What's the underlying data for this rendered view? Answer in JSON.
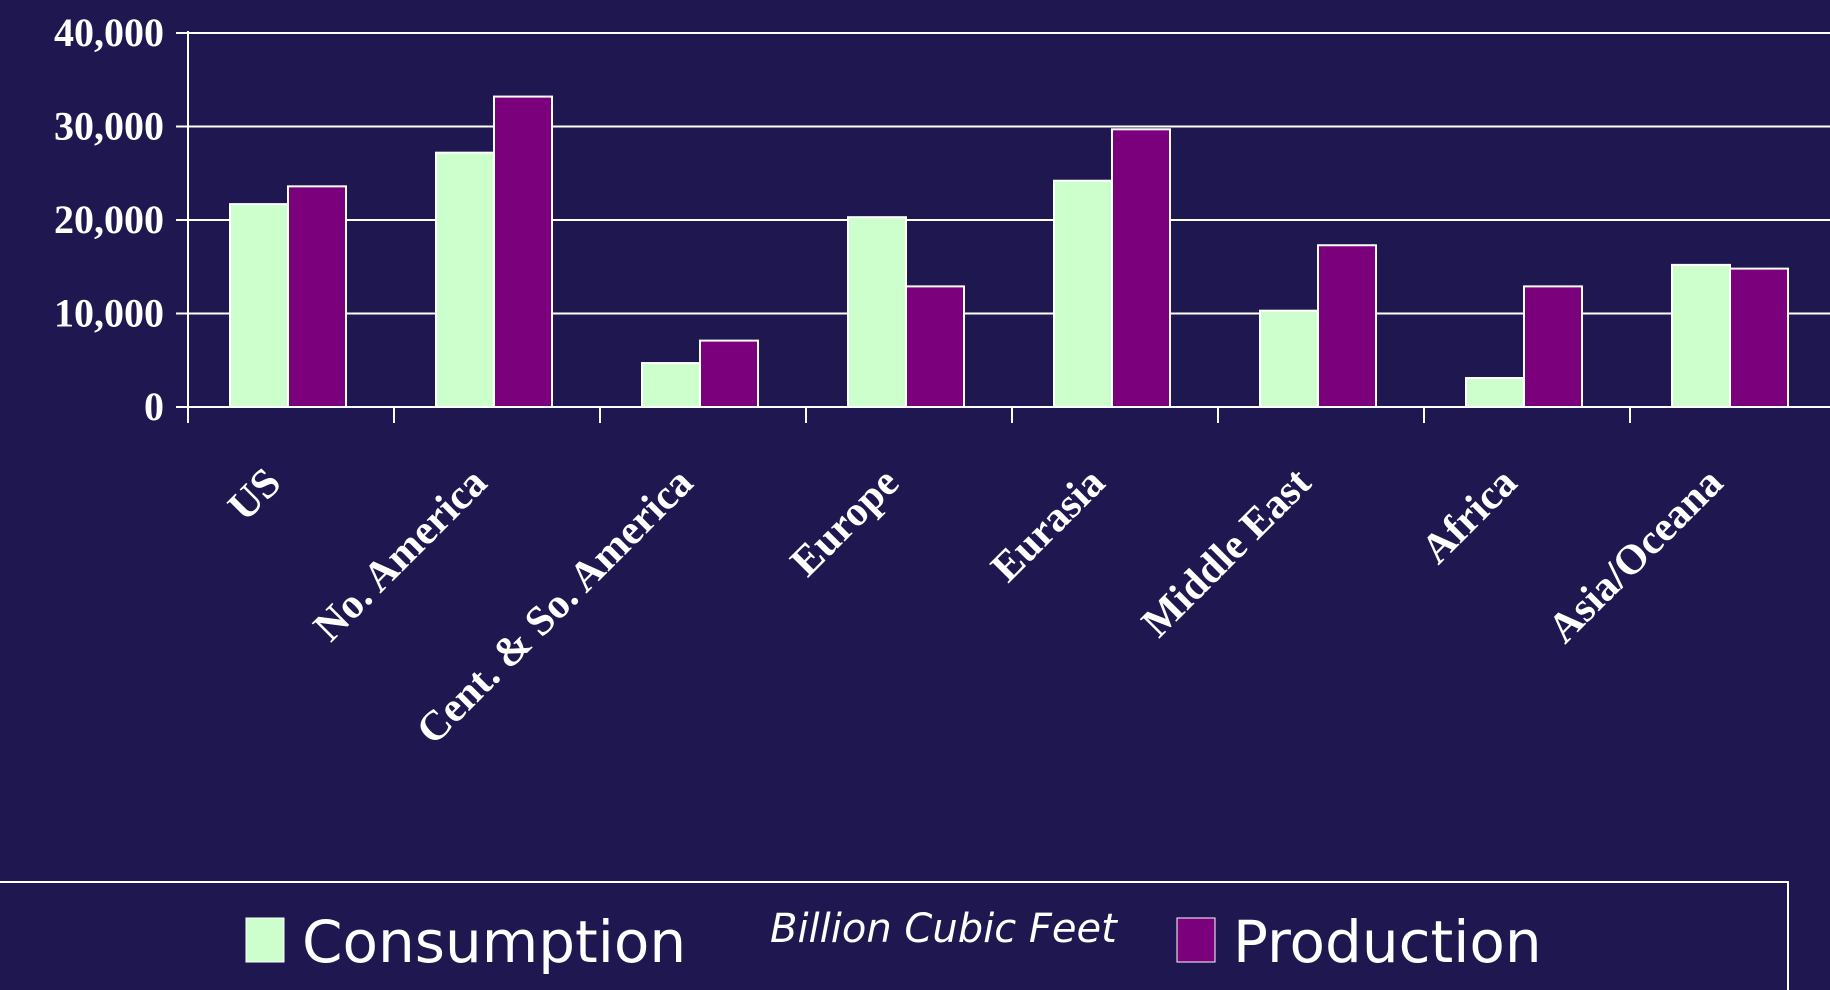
{
  "chart_data": {
    "type": "bar",
    "categories": [
      "US",
      "No. America",
      "Cent. & So. America",
      "Europe",
      "Eurasia",
      "Middle East",
      "Africa",
      "Asia/Oceana"
    ],
    "series": [
      {
        "name": "Consumption",
        "color": "#ccffcc",
        "values": [
          21700,
          27200,
          4700,
          20300,
          24200,
          10300,
          3100,
          15200
        ]
      },
      {
        "name": "Production",
        "color": "#7b007b",
        "values": [
          23600,
          33200,
          7100,
          12900,
          29700,
          17300,
          12900,
          14800
        ]
      }
    ],
    "ylim": [
      0,
      40000
    ],
    "yticks": [
      "0",
      "10,000",
      "20,000",
      "30,000",
      "40,000"
    ],
    "ytick_values": [
      0,
      10000,
      20000,
      30000,
      40000
    ],
    "xlabel": "",
    "ylabel": "",
    "unit_label": "Billion Cubic Feet",
    "grid": true,
    "legend_position": "bottom",
    "background_color": "#1f174f",
    "axis_color": "#ffffff"
  }
}
